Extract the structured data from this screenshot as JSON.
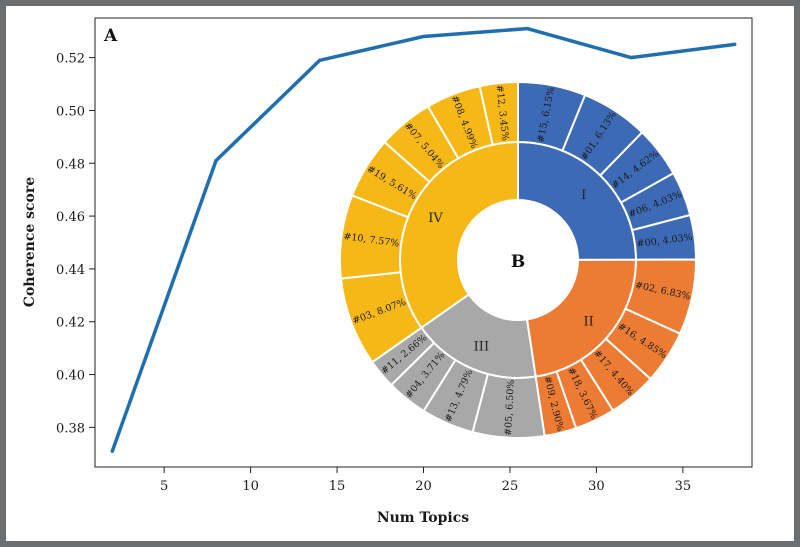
{
  "chart_data": [
    {
      "panel": "A",
      "type": "line",
      "xlabel": "Num Topics",
      "ylabel": "Coherence score",
      "xlim": [
        1,
        39
      ],
      "ylim": [
        0.365,
        0.535
      ],
      "xticks": [
        5,
        10,
        15,
        20,
        25,
        30,
        35
      ],
      "yticks": [
        0.38,
        0.4,
        0.42,
        0.44,
        0.46,
        0.48,
        0.5,
        0.52
      ],
      "grid": false,
      "color": "#1f6fb0",
      "series": [
        {
          "x": [
            2,
            8,
            14,
            20,
            26,
            32,
            38
          ],
          "y": [
            0.371,
            0.481,
            0.519,
            0.528,
            0.531,
            0.52,
            0.525
          ]
        }
      ]
    },
    {
      "panel": "B",
      "type": "pie",
      "style": "sunburst",
      "groups": [
        {
          "name": "I",
          "color": "#3d6ab4",
          "segments": [
            {
              "label": "#15, 6.15%",
              "value": 6.15
            },
            {
              "label": "#01, 6.13%",
              "value": 6.13
            },
            {
              "label": "#14, 4.62%",
              "value": 4.62
            },
            {
              "label": "#06, 4.03%",
              "value": 4.03
            },
            {
              "label": "#00, 4.03%",
              "value": 4.03
            }
          ]
        },
        {
          "name": "II",
          "color": "#ec7b34",
          "segments": [
            {
              "label": "#02, 6.83%",
              "value": 6.83
            },
            {
              "label": "#16, 4.85%",
              "value": 4.85
            },
            {
              "label": "#17, 4.40%",
              "value": 4.4
            },
            {
              "label": "#18, 3.67%",
              "value": 3.67
            },
            {
              "label": "#09, 2.90%",
              "value": 2.9
            }
          ]
        },
        {
          "name": "III",
          "color": "#a8a8a8",
          "segments": [
            {
              "label": "#05, 6.50%",
              "value": 6.5
            },
            {
              "label": "#13, 4.79%",
              "value": 4.79
            },
            {
              "label": "#04, 3.71%",
              "value": 3.71
            },
            {
              "label": "#11, 2.66%",
              "value": 2.66
            }
          ]
        },
        {
          "name": "IV",
          "color": "#f6b817",
          "segments": [
            {
              "label": "#03, 8.07%",
              "value": 8.07
            },
            {
              "label": "#10, 7.57%",
              "value": 7.57
            },
            {
              "label": "#19, 5.61%",
              "value": 5.61
            },
            {
              "label": "#07, 5.04%",
              "value": 5.04
            },
            {
              "label": "#08, 4.99%",
              "value": 4.99
            },
            {
              "label": "#12, 3.45%",
              "value": 3.45
            }
          ]
        }
      ]
    }
  ]
}
